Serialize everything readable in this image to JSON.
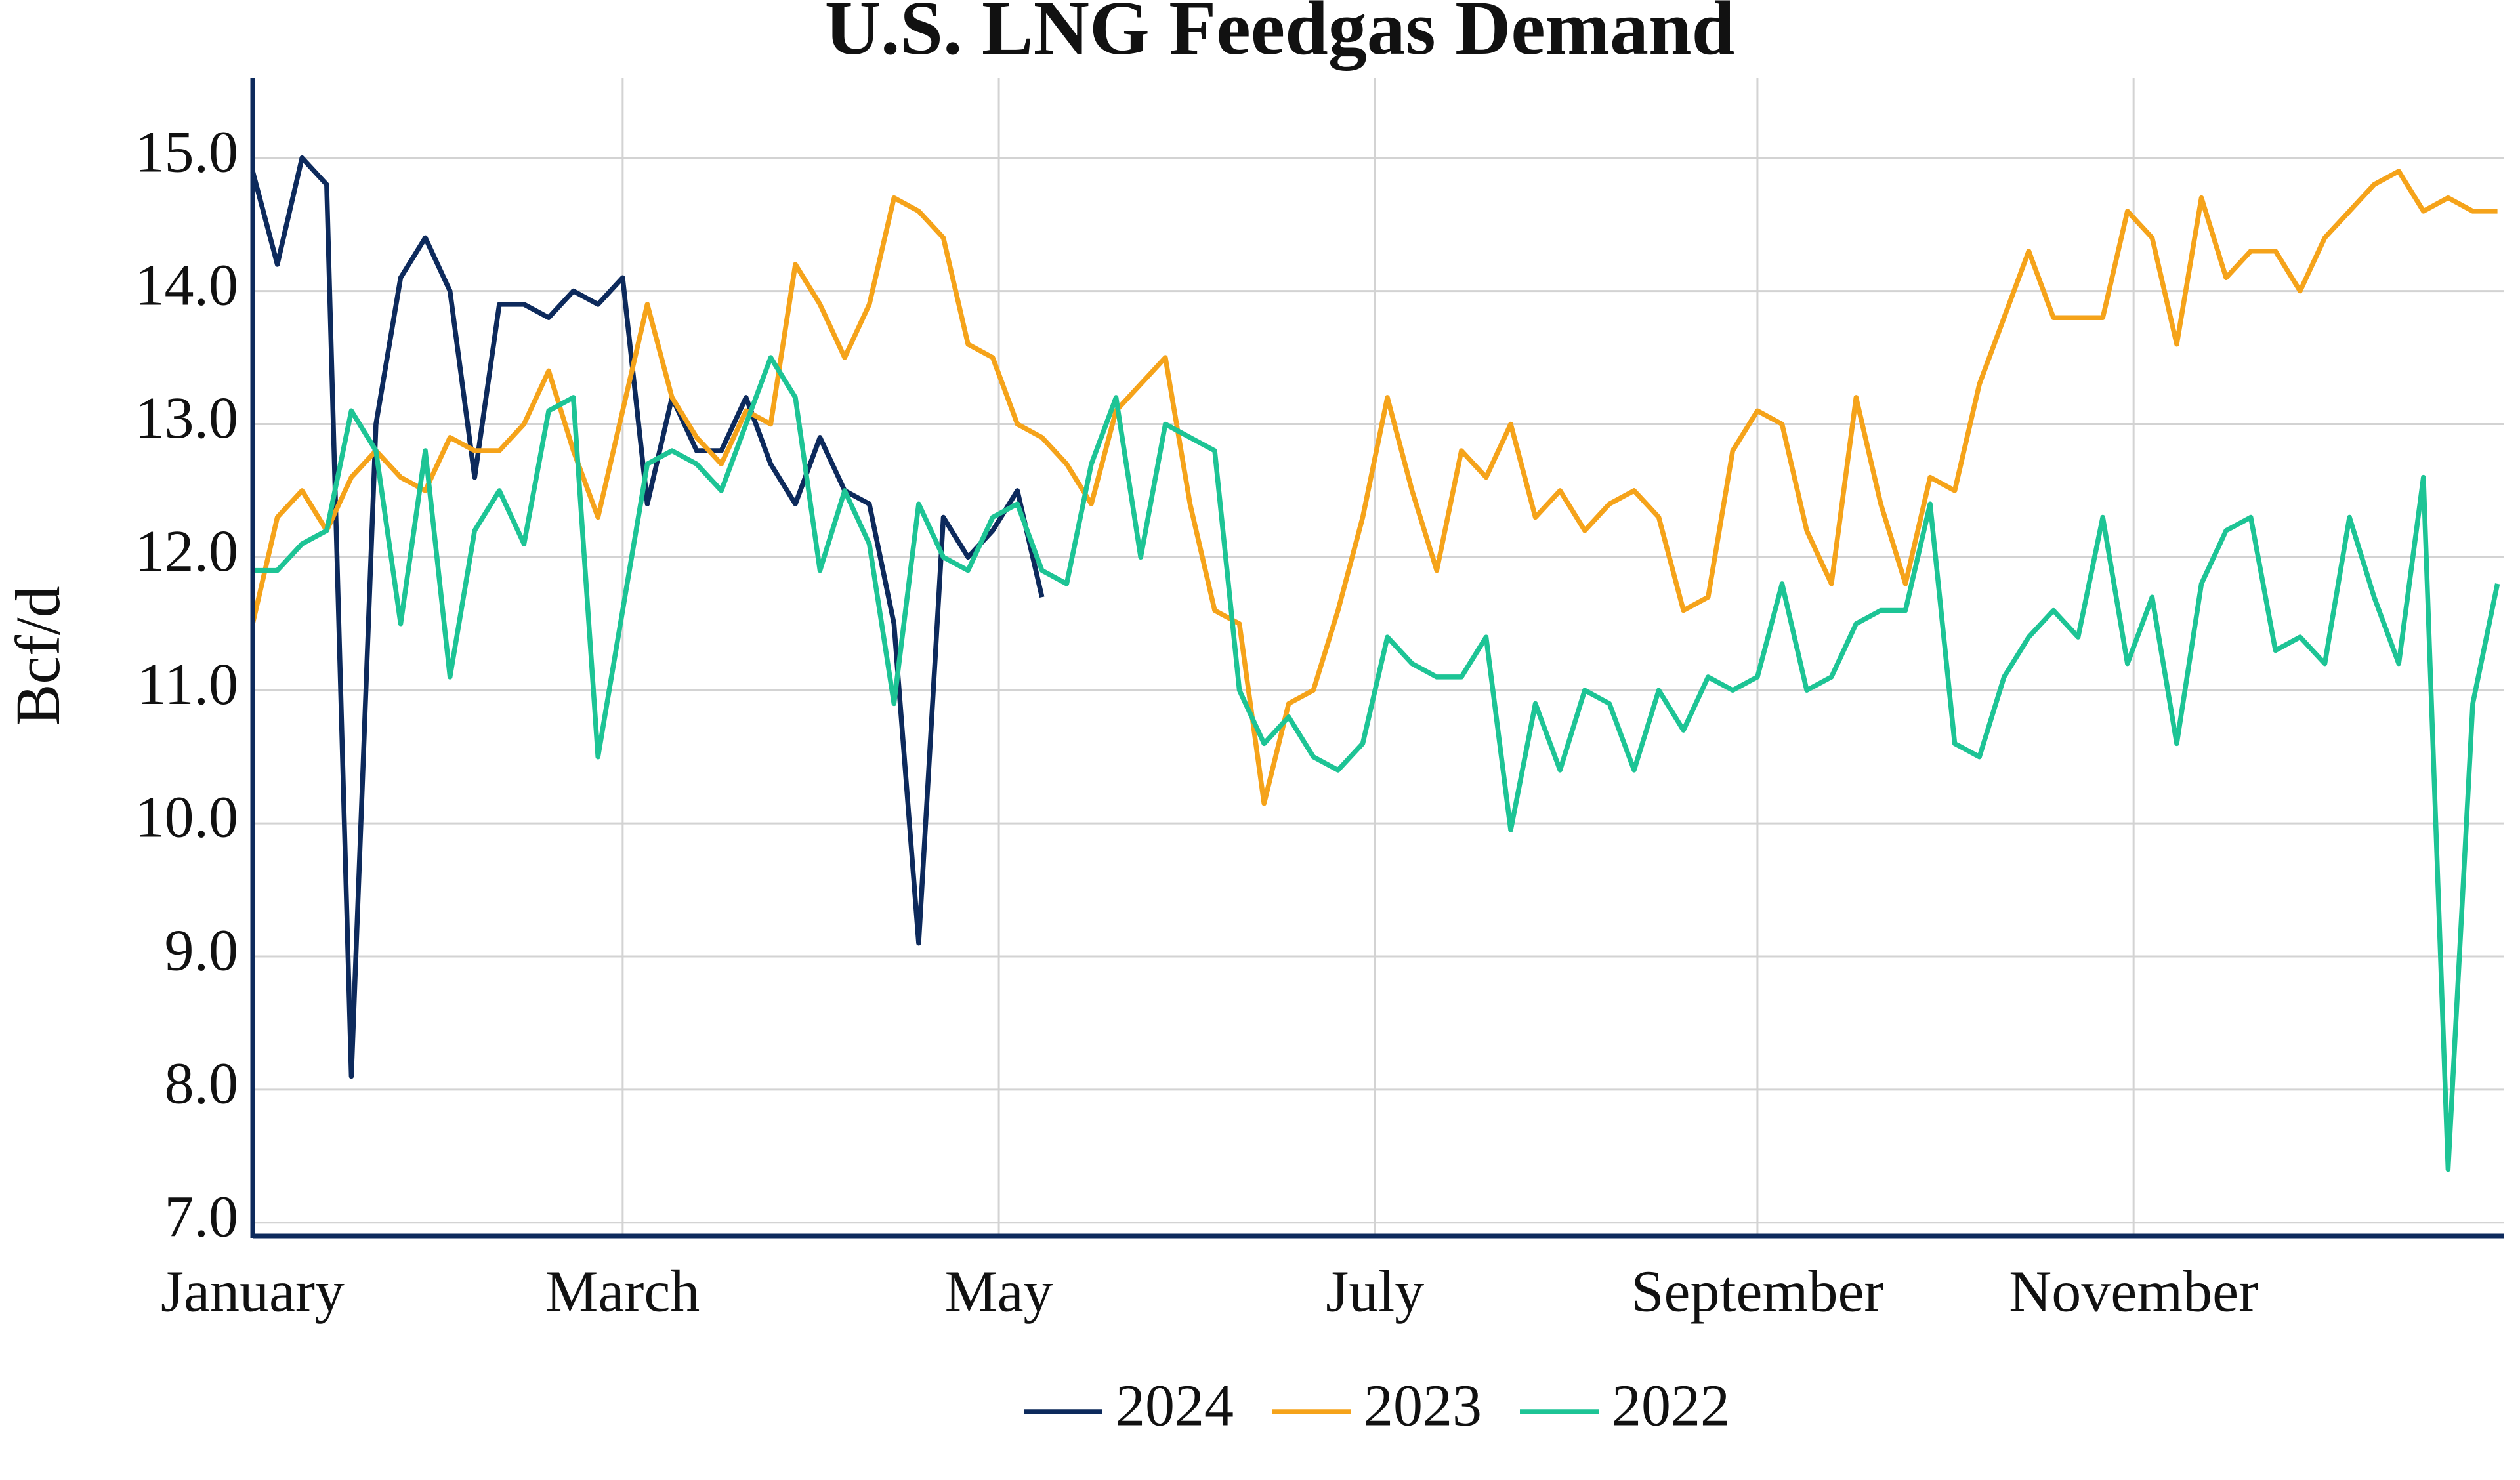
{
  "chart_data": {
    "type": "line",
    "title": "U.S. LNG Feedgas Demand",
    "y_label": "Bcf/d",
    "xlim": [
      0,
      365
    ],
    "xticks": [
      {
        "value": 0,
        "label": "January"
      },
      {
        "value": 60,
        "label": "March"
      },
      {
        "value": 121,
        "label": "May"
      },
      {
        "value": 182,
        "label": "July"
      },
      {
        "value": 244,
        "label": "September"
      },
      {
        "value": 305,
        "label": "November"
      }
    ],
    "ylim": [
      6.9,
      15.6
    ],
    "yticks": [
      {
        "value": 7,
        "label": "7.0"
      },
      {
        "value": 8,
        "label": "8.0"
      },
      {
        "value": 9,
        "label": "9.0"
      },
      {
        "value": 10,
        "label": "10.0"
      },
      {
        "value": 11,
        "label": "11.0"
      },
      {
        "value": 12,
        "label": "12.0"
      },
      {
        "value": 13,
        "label": "13.0"
      },
      {
        "value": 14,
        "label": "14.0"
      },
      {
        "value": 15,
        "label": "15.0"
      }
    ],
    "grid": true,
    "x": [
      0,
      4,
      8,
      12,
      16,
      20,
      24,
      28,
      32,
      36,
      40,
      44,
      48,
      52,
      56,
      60,
      64,
      68,
      72,
      76,
      80,
      84,
      88,
      92,
      96,
      100,
      104,
      108,
      112,
      116,
      120,
      124,
      128,
      132,
      136,
      140,
      144,
      148,
      152,
      156,
      160,
      164,
      168,
      172,
      176,
      180,
      184,
      188,
      192,
      196,
      200,
      204,
      208,
      212,
      216,
      220,
      224,
      228,
      232,
      236,
      240,
      244,
      248,
      252,
      256,
      260,
      264,
      268,
      272,
      276,
      280,
      284,
      288,
      292,
      296,
      300,
      304,
      308,
      312,
      316,
      320,
      324,
      328,
      332,
      336,
      340,
      344,
      348,
      352,
      356,
      360,
      364
    ],
    "series": [
      {
        "name": "2024",
        "color": "#0d2a5c",
        "values": [
          14.9,
          14.2,
          15.0,
          14.8,
          8.1,
          13.0,
          14.1,
          14.4,
          14.0,
          12.6,
          13.9,
          13.9,
          13.8,
          14.0,
          13.9,
          14.1,
          12.4,
          13.2,
          12.8,
          12.8,
          13.2,
          12.7,
          12.4,
          12.9,
          12.5,
          12.4,
          11.5,
          9.1,
          12.3,
          12.0,
          12.2,
          12.5,
          11.7,
          null,
          null,
          null,
          null,
          null,
          null,
          null,
          null,
          null,
          null,
          null,
          null,
          null,
          null,
          null,
          null,
          null,
          null,
          null,
          null,
          null,
          null,
          null,
          null,
          null,
          null,
          null,
          null,
          null,
          null,
          null,
          null,
          null,
          null,
          null,
          null,
          null,
          null,
          null,
          null,
          null,
          null,
          null,
          null,
          null,
          null,
          null,
          null,
          null,
          null,
          null,
          null,
          null,
          null,
          null,
          null,
          null,
          null,
          null
        ]
      },
      {
        "name": "2023",
        "color": "#f5a31a",
        "values": [
          11.5,
          12.3,
          12.5,
          12.2,
          12.6,
          12.8,
          12.6,
          12.5,
          12.9,
          12.8,
          12.8,
          13.0,
          13.4,
          12.8,
          12.3,
          13.1,
          13.9,
          13.2,
          12.9,
          12.7,
          13.1,
          13.0,
          14.2,
          13.9,
          13.5,
          13.9,
          14.7,
          14.6,
          14.4,
          13.6,
          13.5,
          13.0,
          12.9,
          12.7,
          12.4,
          13.1,
          13.3,
          13.5,
          12.4,
          11.6,
          11.5,
          10.15,
          10.9,
          11.0,
          11.6,
          12.3,
          13.2,
          12.5,
          11.9,
          12.8,
          12.6,
          13.0,
          12.3,
          12.5,
          12.2,
          12.4,
          12.5,
          12.3,
          11.6,
          11.7,
          12.8,
          13.1,
          13.0,
          12.2,
          11.8,
          13.2,
          12.4,
          11.8,
          12.6,
          12.5,
          13.3,
          13.8,
          14.3,
          13.8,
          13.8,
          13.8,
          14.6,
          14.4,
          13.6,
          14.7,
          14.1,
          14.3,
          14.3,
          14.0,
          14.4,
          14.6,
          14.8,
          14.9,
          14.6,
          14.7,
          14.6,
          14.6
        ]
      },
      {
        "name": "2022",
        "color": "#1dc495",
        "values": [
          11.9,
          11.9,
          12.1,
          12.2,
          13.1,
          12.8,
          11.5,
          12.8,
          11.1,
          12.2,
          12.5,
          12.1,
          13.1,
          13.2,
          10.5,
          11.6,
          12.7,
          12.8,
          12.7,
          12.5,
          13.0,
          13.5,
          13.2,
          11.9,
          12.5,
          12.1,
          10.9,
          12.4,
          12.0,
          11.9,
          12.3,
          12.4,
          11.9,
          11.8,
          12.7,
          13.2,
          12.0,
          13.0,
          12.9,
          12.8,
          11.0,
          10.6,
          10.8,
          10.5,
          10.4,
          10.6,
          11.4,
          11.2,
          11.1,
          11.1,
          11.4,
          9.95,
          10.9,
          10.4,
          11.0,
          10.9,
          10.4,
          11.0,
          10.7,
          11.1,
          11.0,
          11.1,
          11.8,
          11.0,
          11.1,
          11.5,
          11.6,
          11.6,
          12.4,
          10.6,
          10.5,
          11.1,
          11.4,
          11.6,
          11.4,
          12.3,
          11.2,
          11.7,
          10.6,
          11.8,
          12.2,
          12.3,
          11.3,
          11.4,
          11.2,
          12.3,
          11.7,
          11.2,
          12.6,
          7.4,
          10.9,
          11.8
        ]
      }
    ]
  }
}
